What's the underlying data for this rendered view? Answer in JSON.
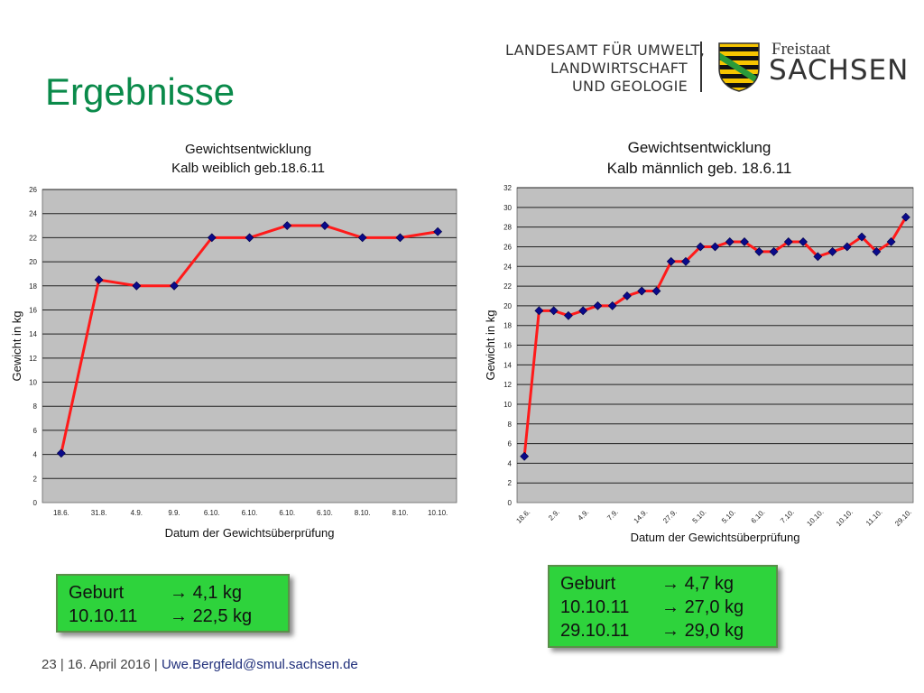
{
  "title": "Ergebnisse",
  "header": {
    "org_lines": [
      "LANDESAMT FÜR UMWELT,",
      "LANDWIRTSCHAFT",
      "UND GEOLOGIE"
    ],
    "freistaat": "Freistaat",
    "sachsen": "SACHSEN"
  },
  "chart_data": [
    {
      "type": "line",
      "title": "Gewichtsentwicklung",
      "subtitle": "Kalb weiblich geb.18.6.11",
      "xlabel": "Datum der Gewichtsüberprüfung",
      "ylabel": "Gewicht in kg",
      "categories": [
        "18.6.",
        "31.8.",
        "4.9.",
        "9.9.",
        "6.10.",
        "6.10.",
        "6.10.",
        "6.10.",
        "8.10.",
        "8.10.",
        "10.10."
      ],
      "values": [
        4.1,
        18.5,
        18,
        18,
        22,
        22,
        23,
        23,
        22,
        22,
        22.5
      ],
      "ylim": [
        0,
        26
      ],
      "yticks": [
        0,
        2,
        4,
        6,
        8,
        10,
        12,
        14,
        16,
        18,
        20,
        22,
        24,
        26
      ],
      "grid": true,
      "line_color": "#ff1a1a",
      "marker_color": "#0a0a8a",
      "plot_bg": "#c0c0c0"
    },
    {
      "type": "line",
      "title": "Gewichtsentwicklung",
      "subtitle": "Kalb männlich geb. 18.6.11",
      "xlabel": "Datum der Gewichtsüberprüfung",
      "ylabel": "Gewicht in kg",
      "categories": [
        "18.6.",
        "",
        "2.9.",
        "",
        "4.9.",
        "",
        "7.9.",
        "",
        "14.9.",
        "",
        "27.9.",
        "",
        "5.10.",
        "",
        "5.10.",
        "",
        "6.10.",
        "",
        "7.10.",
        "",
        "10.10.",
        "",
        "10.10.",
        "",
        "11.10.",
        "",
        "29.10."
      ],
      "values": [
        4.7,
        19.5,
        19.5,
        19,
        19.5,
        20,
        20,
        21,
        21.5,
        21.5,
        24.5,
        24.5,
        26,
        26,
        26.5,
        26.5,
        25.5,
        25.5,
        26.5,
        26.5,
        25,
        25.5,
        26,
        27,
        25.5,
        26.5,
        29
      ],
      "ylim": [
        0,
        32
      ],
      "yticks": [
        0,
        2,
        4,
        6,
        8,
        10,
        12,
        14,
        16,
        18,
        20,
        22,
        24,
        26,
        28,
        30,
        32
      ],
      "grid": true,
      "line_color": "#ff1a1a",
      "marker_color": "#0a0a8a",
      "plot_bg": "#c0c0c0"
    }
  ],
  "box_left": {
    "rows": [
      {
        "label": "Geburt",
        "value": "4,1 kg"
      },
      {
        "label": "10.10.11",
        "value": "22,5 kg"
      }
    ]
  },
  "box_right": {
    "rows": [
      {
        "label": "Geburt",
        "value": "4,7 kg"
      },
      {
        "label": "10.10.11",
        "value": "27,0 kg"
      },
      {
        "label": "29.10.11",
        "value": "29,0 kg"
      }
    ]
  },
  "arrow": "→",
  "colors": {
    "title_green": "#0a8a4a",
    "box_green": "#2ed33c",
    "footer_link": "#1f2e7a"
  },
  "footer": {
    "page": "23",
    "date": "16. April 2016",
    "email": "Uwe.Bergfeld@smul.sachsen.de",
    "sep": "|"
  }
}
